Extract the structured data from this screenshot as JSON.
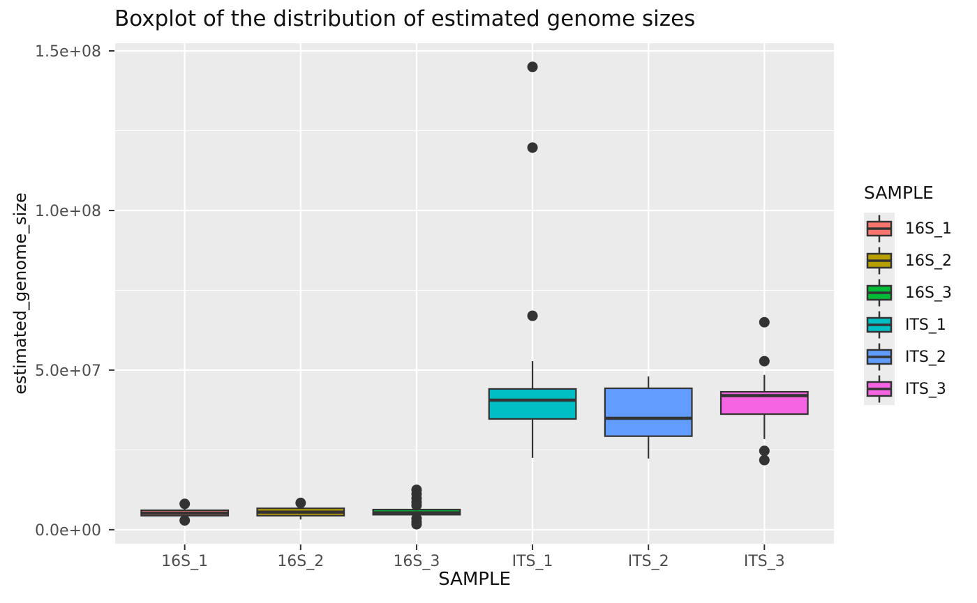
{
  "title": "Boxplot of the distribution of estimated genome sizes",
  "chart_data": {
    "type": "boxplot",
    "title": "Boxplot of the distribution of estimated genome sizes",
    "xlabel": "SAMPLE",
    "ylabel": "estimated_genome_size",
    "legend": {
      "title": "SAMPLE",
      "position": "right"
    },
    "categories": [
      "16S_1",
      "16S_2",
      "16S_3",
      "ITS_1",
      "ITS_2",
      "ITS_3"
    ],
    "y_ticks": [
      {
        "value": 0,
        "label": "0.0e+00"
      },
      {
        "value": 50000000,
        "label": "5.0e+07"
      },
      {
        "value": 100000000,
        "label": "1.0e+08"
      },
      {
        "value": 150000000,
        "label": "1.5e+08"
      }
    ],
    "y_minor_ticks": [
      25000000,
      75000000,
      125000000
    ],
    "ylim": [
      -4400000,
      152400000
    ],
    "grid": true,
    "series": [
      {
        "name": "16S_1",
        "color": "#F8766D",
        "whisker_low": 3600000,
        "q1": 4400000,
        "median": 5200000,
        "q3": 6100000,
        "whisker_high": 6900000,
        "outliers": [
          8100000,
          2900000
        ]
      },
      {
        "name": "16S_2",
        "color": "#B79F00",
        "whisker_low": 3200000,
        "q1": 4400000,
        "median": 5500000,
        "q3": 6700000,
        "whisker_high": 7200000,
        "outliers": [
          8400000
        ]
      },
      {
        "name": "16S_3",
        "color": "#00BA38",
        "whisker_low": 4000000,
        "q1": 4700000,
        "median": 5300000,
        "q3": 6300000,
        "whisker_high": 7000000,
        "outliers": [
          12500000,
          11200000,
          9800000,
          8600000,
          7600000,
          3500000,
          2400000,
          1700000
        ]
      },
      {
        "name": "ITS_1",
        "color": "#00BFC4",
        "whisker_low": 22500000,
        "q1": 34700000,
        "median": 40600000,
        "q3": 44100000,
        "whisker_high": 52800000,
        "outliers": [
          145000000,
          119700000,
          67000000
        ]
      },
      {
        "name": "ITS_2",
        "color": "#619CFF",
        "whisker_low": 22300000,
        "q1": 29300000,
        "median": 34900000,
        "q3": 44300000,
        "whisker_high": 48000000,
        "outliers": []
      },
      {
        "name": "ITS_3",
        "color": "#F564E3",
        "whisker_low": 28400000,
        "q1": 36200000,
        "median": 42000000,
        "q3": 43200000,
        "whisker_high": 48500000,
        "outliers": [
          65000000,
          52800000,
          24700000,
          21800000
        ]
      }
    ],
    "colors": {
      "background": "#FFFFFF",
      "panel_bg": "#EBEBEB",
      "grid": "#FFFFFF",
      "box_stroke": "#333333",
      "outlier": "#333333",
      "axis_tick": "#333333",
      "tick_label": "#4D4D4D",
      "text": "#111111",
      "legend_key_bg": "#ECECEC"
    }
  }
}
